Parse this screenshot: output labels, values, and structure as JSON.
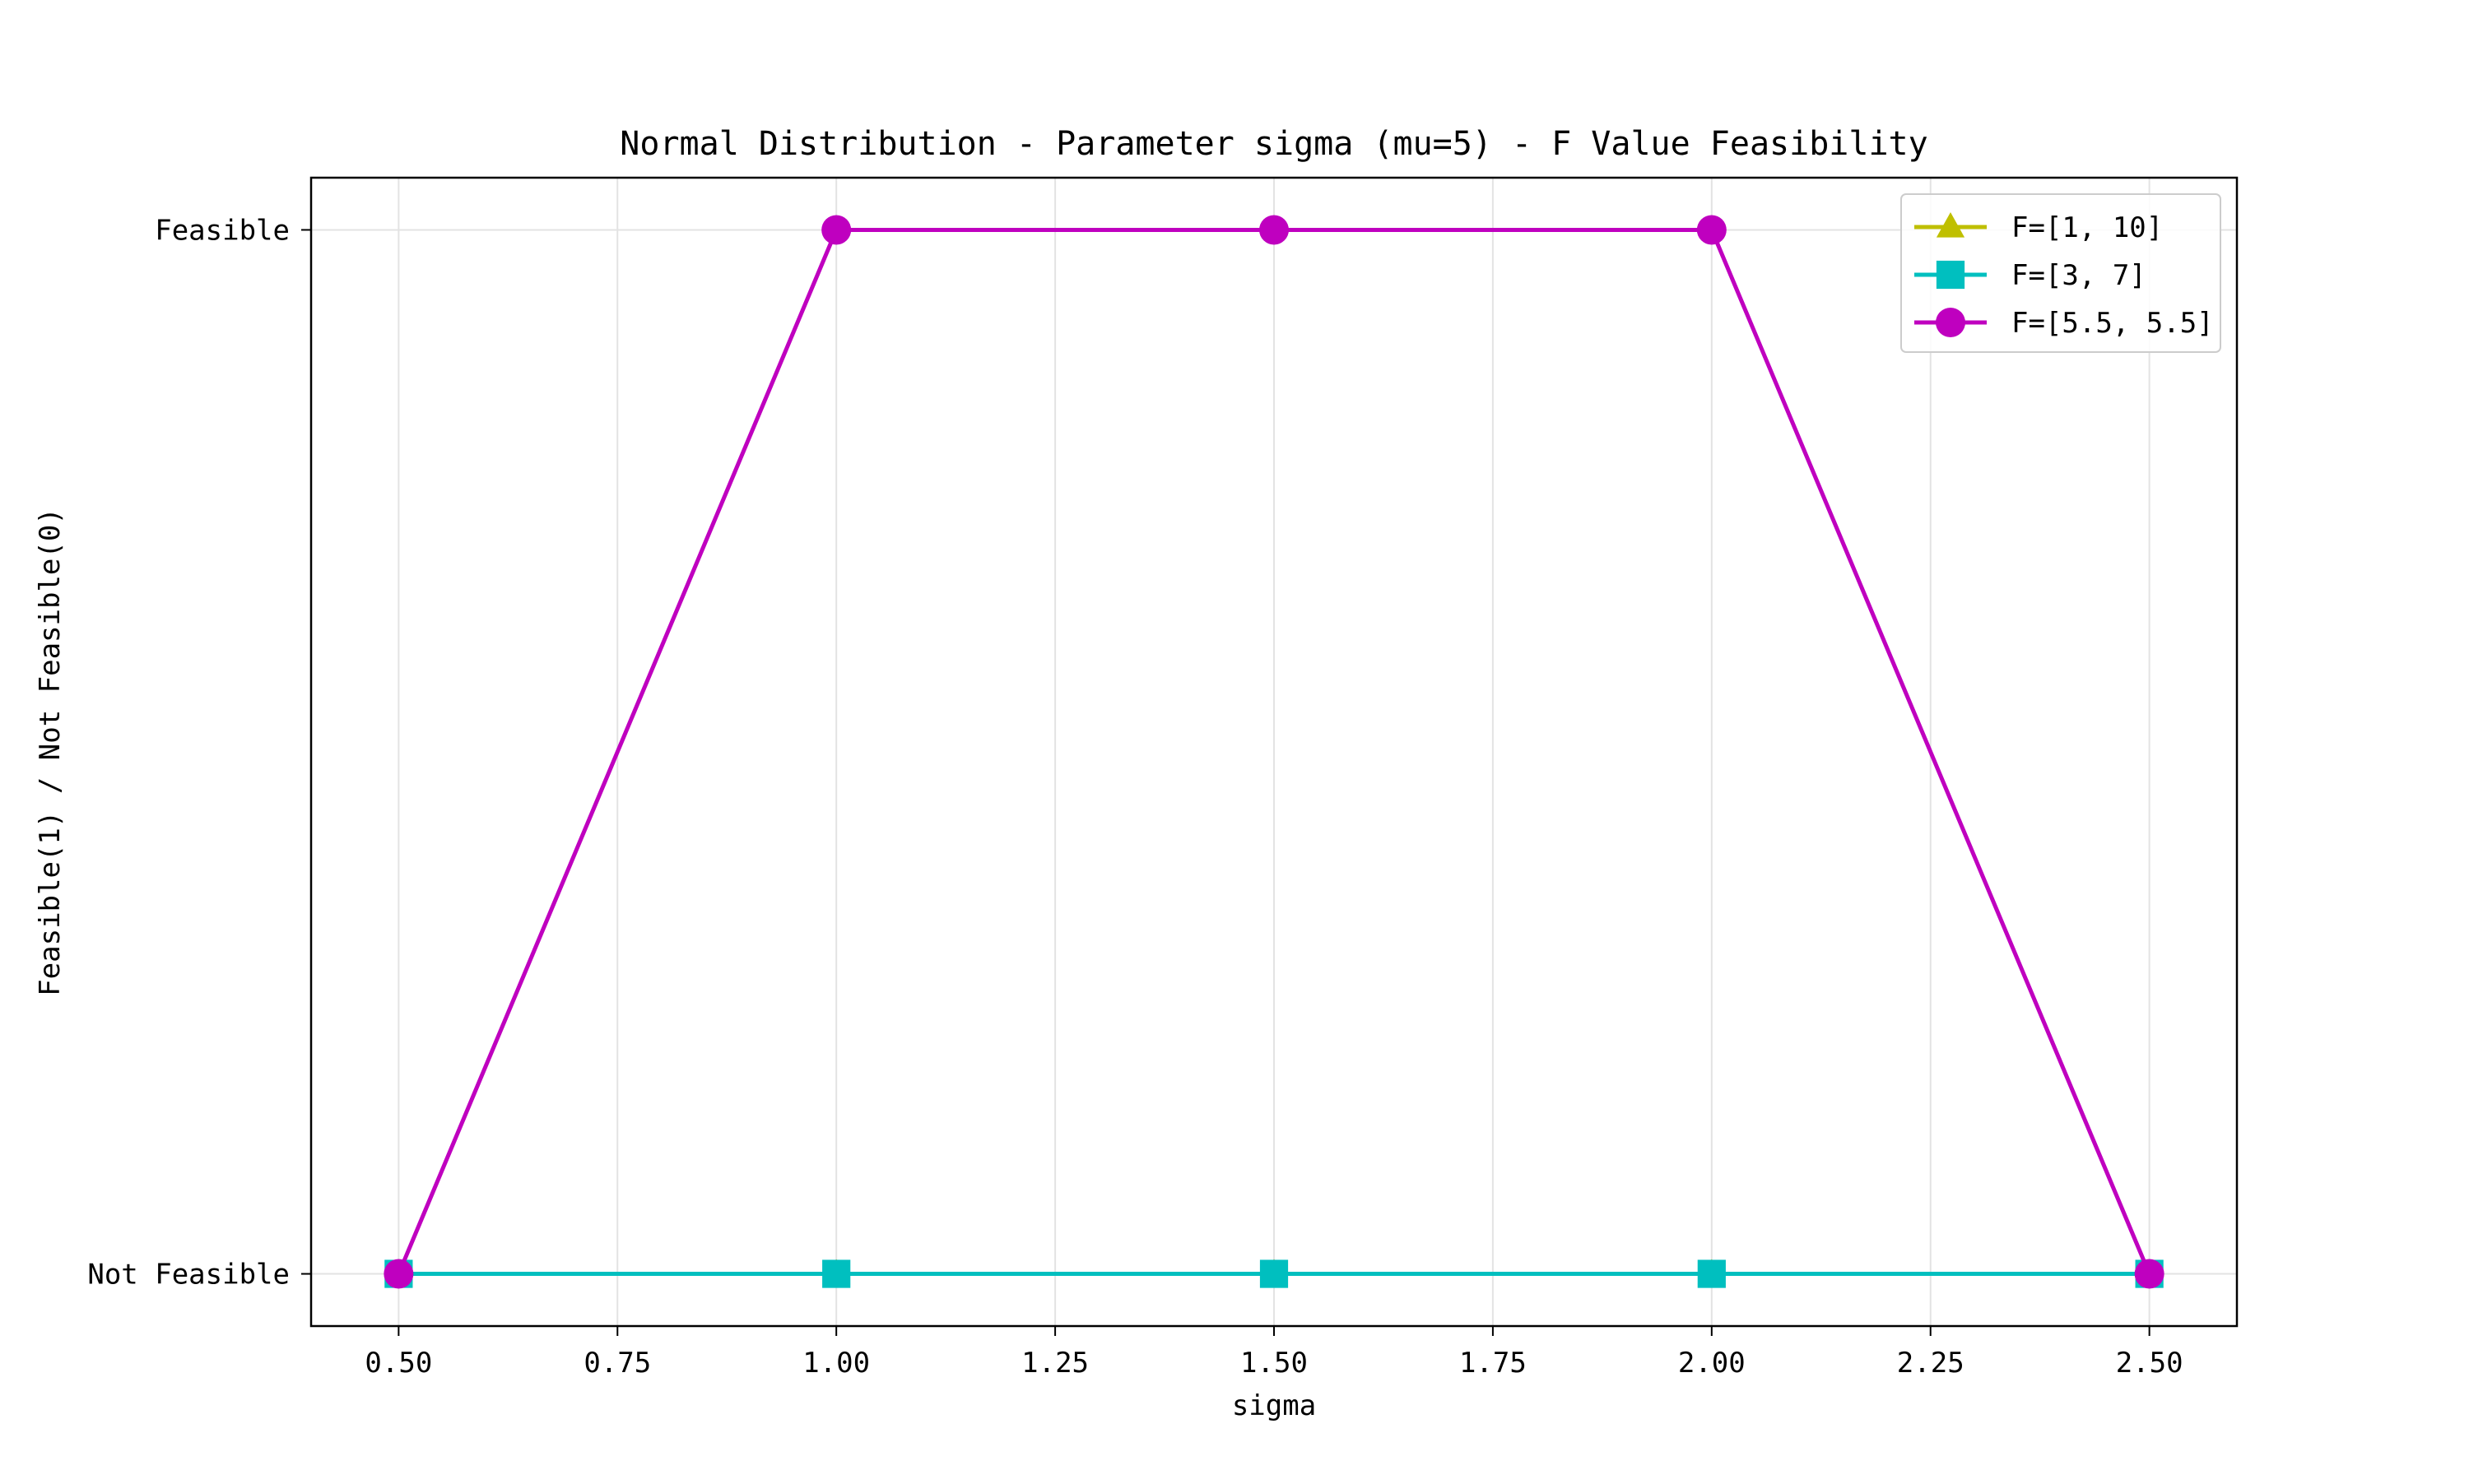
{
  "chart_data": {
    "type": "line",
    "title": "Normal Distribution - Parameter sigma (mu=5) - F Value Feasibility",
    "xlabel": "sigma",
    "ylabel": "Feasible(1) / Not Feasible(0)",
    "x": [
      0.5,
      1.0,
      1.5,
      2.0,
      2.5
    ],
    "x_ticks": [
      0.5,
      0.75,
      1.0,
      1.25,
      1.5,
      1.75,
      2.0,
      2.25,
      2.5
    ],
    "x_tick_labels": [
      "0.50",
      "0.75",
      "1.00",
      "1.25",
      "1.50",
      "1.75",
      "2.00",
      "2.25",
      "2.50"
    ],
    "xlim": [
      0.4,
      2.6
    ],
    "y_ticks": [
      0,
      1
    ],
    "y_tick_labels": [
      "Not Feasible",
      "Feasible"
    ],
    "ylim": [
      -0.05,
      1.05
    ],
    "grid": true,
    "legend_position": "top-right",
    "series": [
      {
        "name": "F=[1, 10]",
        "values": [
          0,
          0,
          0,
          0,
          0
        ],
        "color": "#bfbf00",
        "marker": "triangle"
      },
      {
        "name": "F=[3, 7]",
        "values": [
          0,
          0,
          0,
          0,
          0
        ],
        "color": "#00bfbf",
        "marker": "square"
      },
      {
        "name": "F=[5.5, 5.5]",
        "values": [
          0,
          1,
          1,
          1,
          0
        ],
        "color": "#bf00bf",
        "marker": "circle"
      }
    ]
  }
}
